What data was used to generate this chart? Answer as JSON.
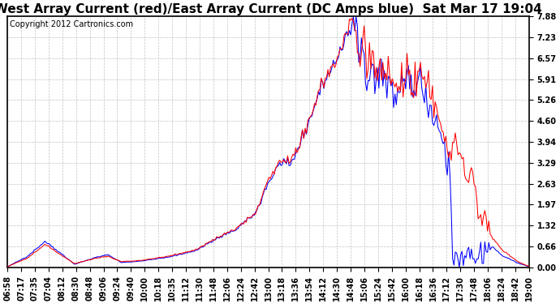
{
  "title": "West Array Current (red)/East Array Current (DC Amps blue)  Sat Mar 17 19:04",
  "copyright": "Copyright 2012 Cartronics.com",
  "yticks": [
    0.0,
    0.66,
    1.32,
    1.97,
    2.63,
    3.29,
    3.94,
    4.6,
    5.26,
    5.91,
    6.57,
    7.23,
    7.88
  ],
  "ylim": [
    0.0,
    7.88
  ],
  "xtick_labels": [
    "06:58",
    "07:17",
    "07:35",
    "07:04",
    "08:12",
    "08:30",
    "08:48",
    "09:06",
    "09:24",
    "09:40",
    "10:00",
    "10:18",
    "10:35",
    "11:12",
    "11:30",
    "11:48",
    "12:06",
    "12:24",
    "12:42",
    "13:00",
    "13:18",
    "13:36",
    "13:54",
    "14:12",
    "14:30",
    "14:48",
    "15:06",
    "15:24",
    "15:42",
    "16:00",
    "16:18",
    "16:36",
    "17:12",
    "17:30",
    "17:48",
    "18:06",
    "18:24",
    "18:42",
    "19:00"
  ],
  "bg_color": "#ffffff",
  "grid_color": "#aaaaaa",
  "line_red": "#ff0000",
  "line_blue": "#0000ff",
  "title_fontsize": 11,
  "tick_fontsize": 7,
  "copyright_fontsize": 7
}
